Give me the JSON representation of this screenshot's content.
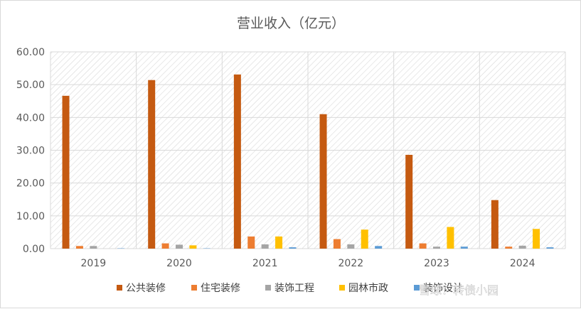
{
  "chart_data": {
    "type": "bar",
    "title": "营业收入（亿元）",
    "xlabel": "",
    "ylabel": "",
    "categories": [
      "2019",
      "2020",
      "2021",
      "2022",
      "2023",
      "2024"
    ],
    "ylim": [
      0,
      60
    ],
    "yticks": [
      "0.00",
      "10.00",
      "20.00",
      "30.00",
      "40.00",
      "50.00",
      "60.00"
    ],
    "grid": true,
    "legend_position": "bottom",
    "series": [
      {
        "name": "公共装修",
        "color": "#c55a11",
        "values": [
          46.6,
          51.4,
          53.1,
          41.0,
          28.6,
          14.8
        ]
      },
      {
        "name": "住宅装修",
        "color": "#ed7d31",
        "values": [
          0.8,
          1.6,
          3.7,
          2.9,
          1.6,
          0.6
        ]
      },
      {
        "name": "装饰工程",
        "color": "#a5a5a5",
        "values": [
          0.8,
          1.2,
          1.3,
          1.3,
          0.6,
          0.9
        ]
      },
      {
        "name": "园林市政",
        "color": "#ffc000",
        "values": [
          0.0,
          1.0,
          3.7,
          5.8,
          6.6,
          6.0
        ]
      },
      {
        "name": "装饰设计",
        "color": "#5b9bd5",
        "values": [
          0.1,
          0.1,
          0.4,
          0.8,
          0.6,
          0.4
        ]
      }
    ]
  },
  "watermark": "雪球：转债小园"
}
